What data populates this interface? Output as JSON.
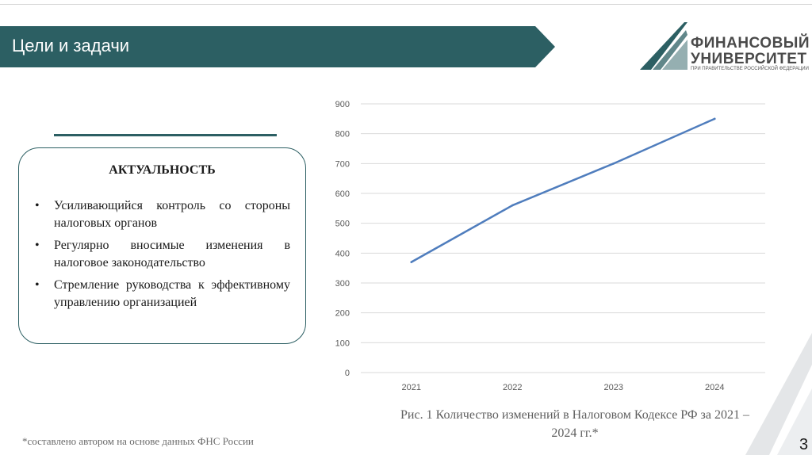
{
  "header": {
    "title": "Цели и задачи",
    "banner_color": "#2c5f63"
  },
  "logo": {
    "line1": "ФИНАНСОВЫЙ",
    "line2": "УНИВЕРСИТЕТ",
    "line3": "ПРИ ПРАВИТЕЛЬСТВЕ РОССИЙСКОЙ ФЕДЕРАЦИИ"
  },
  "card": {
    "heading": "АКТУАЛЬНОСТЬ",
    "bullet_symbol": "•",
    "items": [
      "Усиливающийся контроль со стороны налоговых органов",
      "Регулярно вносимые изменения в налоговое законодательство",
      "Стремление руководства к эффективному управлению организацией"
    ]
  },
  "chart_data": {
    "type": "line",
    "categories": [
      "2021",
      "2022",
      "2023",
      "2024"
    ],
    "series": [
      {
        "values": [
          370,
          560,
          700,
          850
        ],
        "color": "#4f7dbd"
      }
    ],
    "ylim": [
      0,
      900
    ],
    "yticks": [
      "0",
      "100",
      "200",
      "300",
      "400",
      "500",
      "600",
      "700",
      "800",
      "900"
    ],
    "grid": true,
    "title": "",
    "xlabel": "",
    "ylabel": ""
  },
  "caption": {
    "line1": "Рис. 1 Количество изменений в Налоговом Кодексе РФ за 2021 –",
    "line2": "2024 гг.*"
  },
  "footnote": "*составлено автором на основе данных ФНС России",
  "page_number": "3"
}
